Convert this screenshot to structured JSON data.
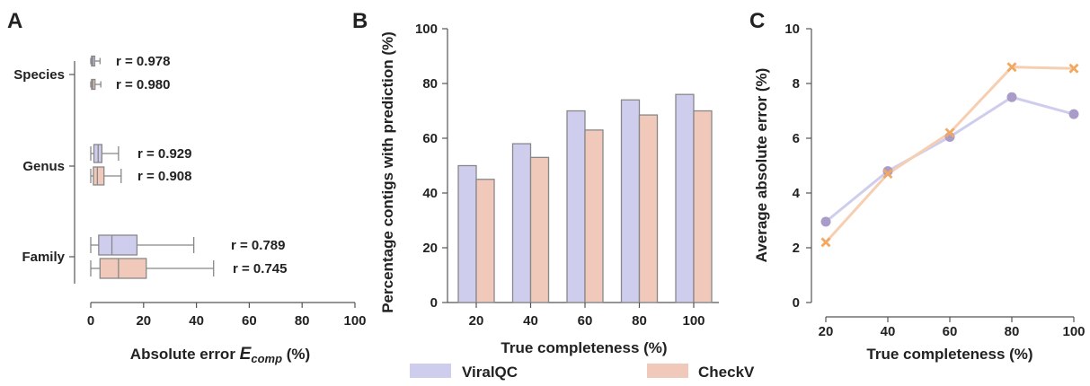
{
  "colors": {
    "viralqc": "#cfcdee",
    "checkv": "#f0c9bb",
    "viralqc_line": "#a99cc9",
    "checkv_line": "#f2a860",
    "edge": "#888888"
  },
  "panels": {
    "a": "A",
    "b": "B",
    "c": "C"
  },
  "legend": [
    {
      "name": "ViralQC"
    },
    {
      "name": "CheckV"
    }
  ],
  "chart_data": [
    {
      "type": "box",
      "xlabel_main": "Absolute error ",
      "xlabel_var": "E",
      "xlabel_sub": "comp",
      "xlabel_unit": " (%)",
      "xlim": [
        0,
        100
      ],
      "x_ticks": [
        "0",
        "20",
        "40",
        "60",
        "80",
        "100"
      ],
      "categories": [
        "Species",
        "Genus",
        "Family"
      ],
      "boxes": [
        {
          "category": "Species",
          "series": "ViralQC",
          "whislo": 0,
          "q1": 0.3,
          "med": 0.8,
          "q3": 1.5,
          "whishi": 3.5,
          "r_label": "r = 0.978"
        },
        {
          "category": "Species",
          "series": "CheckV",
          "whislo": 0,
          "q1": 0.3,
          "med": 0.8,
          "q3": 1.6,
          "whishi": 3.8,
          "r_label": "r = 0.980"
        },
        {
          "category": "Genus",
          "series": "ViralQC",
          "whislo": 0,
          "q1": 1.2,
          "med": 2.8,
          "q3": 4.2,
          "whishi": 10.5,
          "r_label": "r = 0.929"
        },
        {
          "category": "Genus",
          "series": "CheckV",
          "whislo": 0,
          "q1": 1.0,
          "med": 2.5,
          "q3": 5.0,
          "whishi": 11.5,
          "r_label": "r = 0.908"
        },
        {
          "category": "Family",
          "series": "ViralQC",
          "whislo": 0,
          "q1": 3.0,
          "med": 8.0,
          "q3": 17.5,
          "whishi": 39.0,
          "r_label": "r = 0.789"
        },
        {
          "category": "Family",
          "series": "CheckV",
          "whislo": 0,
          "q1": 3.5,
          "med": 10.5,
          "q3": 21.0,
          "whishi": 46.5,
          "r_label": "r = 0.745"
        }
      ]
    },
    {
      "type": "bar",
      "categories": [
        "20",
        "40",
        "60",
        "80",
        "100"
      ],
      "series": [
        {
          "name": "ViralQC",
          "values": [
            50,
            58,
            70,
            74,
            76
          ]
        },
        {
          "name": "CheckV",
          "values": [
            45,
            53,
            63,
            68.5,
            70
          ]
        }
      ],
      "ylim": [
        0,
        100
      ],
      "y_ticks": [
        "0",
        "20",
        "40",
        "60",
        "80",
        "100"
      ],
      "xlabel": "True completeness (%)",
      "ylabel": "Percentage contigs with prediction (%)"
    },
    {
      "type": "line",
      "x": [
        20,
        40,
        60,
        80,
        100
      ],
      "x_ticks": [
        "20",
        "40",
        "60",
        "80",
        "100"
      ],
      "series": [
        {
          "name": "ViralQC",
          "marker": "circle",
          "values": [
            2.95,
            4.8,
            6.05,
            7.5,
            6.88
          ]
        },
        {
          "name": "CheckV",
          "marker": "x",
          "values": [
            2.2,
            4.7,
            6.2,
            8.6,
            8.55
          ]
        }
      ],
      "ylim": [
        0,
        10
      ],
      "y_ticks": [
        "0",
        "2",
        "4",
        "6",
        "8",
        "10"
      ],
      "xlabel": "True completeness (%)",
      "ylabel": "Average absolute error (%)"
    }
  ]
}
